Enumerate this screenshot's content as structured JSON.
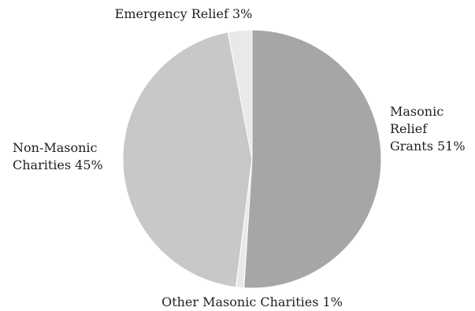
{
  "chart_data": {
    "type": "pie",
    "title": "",
    "slices": [
      {
        "label": "Masonic Relief Grants 51%",
        "lines": [
          "Masonic",
          "Relief",
          "Grants 51%"
        ],
        "value": 51,
        "color": "#a6a6a8"
      },
      {
        "label": "Other Masonic Charities 1%",
        "lines": [
          "Other Masonic Charities 1%"
        ],
        "value": 1,
        "color": "#e9e9eb"
      },
      {
        "label": "Non-Masonic Charities 45%",
        "lines": [
          "Non-Masonic",
          "Charities 45%"
        ],
        "value": 45,
        "color": "#c8c8ca"
      },
      {
        "label": "Emergency Relief 3%",
        "lines": [
          "Emergency Relief 3%"
        ],
        "value": 3,
        "color": "#e9e9eb"
      }
    ],
    "legend": "none"
  }
}
